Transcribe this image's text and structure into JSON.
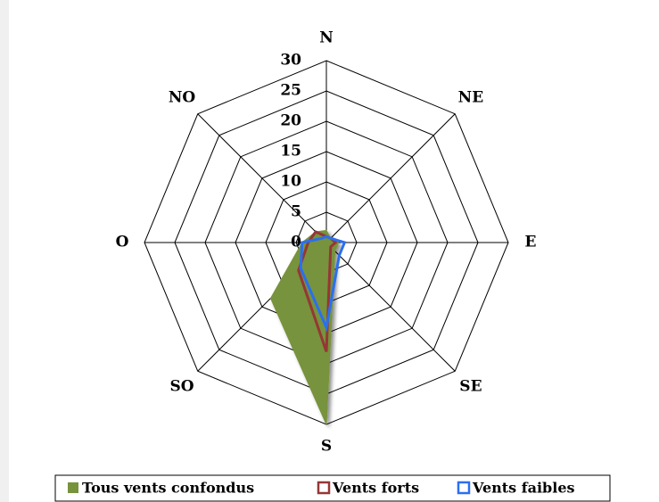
{
  "chart_data": {
    "type": "radar",
    "categories": [
      "N",
      "NE",
      "E",
      "SE",
      "S",
      "SO",
      "O",
      "NO"
    ],
    "rlim": [
      0,
      30
    ],
    "rticks": [
      0,
      5,
      10,
      15,
      20,
      25,
      30
    ],
    "series": [
      {
        "name": "Tous vents confondus",
        "color": "#77933c",
        "fill": true,
        "values": [
          2,
          1,
          2,
          2,
          30,
          13,
          4,
          2.5
        ]
      },
      {
        "name": "Vents forts",
        "color": "#953735",
        "fill": false,
        "values": [
          1,
          1,
          1.5,
          1,
          18,
          6.5,
          3,
          2.5
        ]
      },
      {
        "name": "Vents faibles",
        "color": "#2a6ff0",
        "fill": false,
        "values": [
          1,
          1,
          3,
          3,
          14,
          6,
          4,
          1
        ]
      }
    ]
  }
}
